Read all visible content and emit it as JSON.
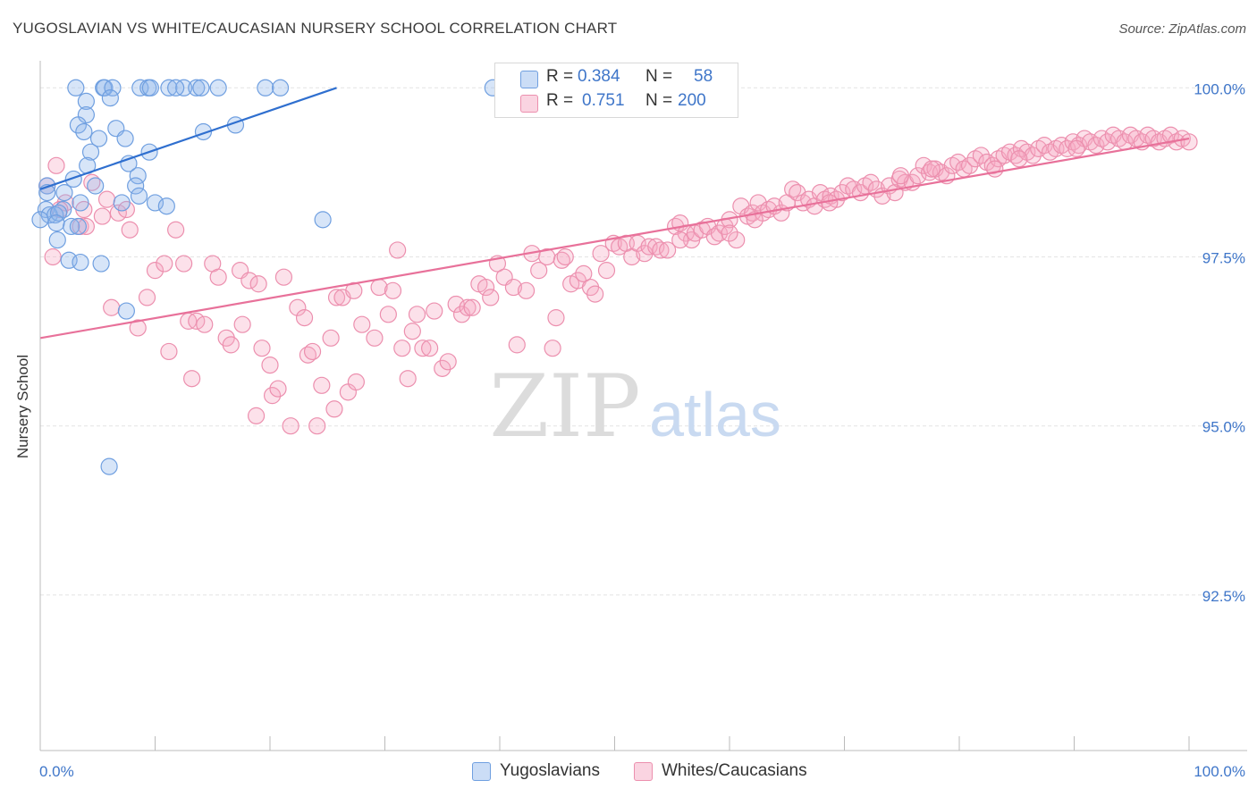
{
  "title": "YUGOSLAVIAN VS WHITE/CAUCASIAN NURSERY SCHOOL CORRELATION CHART",
  "source": "Source: ZipAtlas.com",
  "watermark": {
    "zip": "ZIP",
    "atlas": "atlas"
  },
  "colors": {
    "blue": "#6f9fe0",
    "blue_fill": "rgba(140,180,235,0.35)",
    "blue_line": "#2f6fcf",
    "pink": "#ec8fae",
    "pink_fill": "rgba(245,170,195,0.35)",
    "pink_line": "#e8719a",
    "axis_text": "#3f76c9",
    "grid": "#e4e4e4"
  },
  "stats": [
    {
      "series": "Yugoslavians",
      "r_label": "R =",
      "r": "0.384",
      "n_label": "N =",
      "n": "58"
    },
    {
      "series": "Whites/Caucasians",
      "r_label": "R =",
      "r": "0.751",
      "n_label": "N =",
      "n": "200"
    }
  ],
  "legend": [
    "Yugoslavians",
    "Whites/Caucasians"
  ],
  "chart_data": {
    "type": "scatter",
    "title": "YUGOSLAVIAN VS WHITE/CAUCASIAN NURSERY SCHOOL CORRELATION CHART",
    "ylabel": "Nursery School",
    "xlim": [
      0,
      100
    ],
    "ylim": [
      90.2,
      100.4
    ],
    "x_tick_labels": [
      "0.0%",
      "100.0%"
    ],
    "y_ticks": [
      100.0,
      97.5,
      95.0,
      92.5
    ],
    "y_tick_labels": [
      "100.0%",
      "97.5%",
      "95.0%",
      "92.5%"
    ],
    "grid": true,
    "legend_position": "bottom-center",
    "series": [
      {
        "name": "Yugoslavians",
        "trend": {
          "x": [
            0,
            25.8
          ],
          "y": [
            98.5,
            100.0
          ]
        },
        "points": [
          [
            3.1,
            100.0
          ],
          [
            5.5,
            100.0
          ],
          [
            5.6,
            100.0
          ],
          [
            6.3,
            100.0
          ],
          [
            8.7,
            100.0
          ],
          [
            9.4,
            100.0
          ],
          [
            9.6,
            100.0
          ],
          [
            11.2,
            100.0
          ],
          [
            12.5,
            100.0
          ],
          [
            13.6,
            100.0
          ],
          [
            14.0,
            100.0
          ],
          [
            15.5,
            100.0
          ],
          [
            19.6,
            100.0
          ],
          [
            20.9,
            100.0
          ],
          [
            39.4,
            100.0
          ],
          [
            6.1,
            99.85
          ],
          [
            4.0,
            99.8
          ],
          [
            4.0,
            99.6
          ],
          [
            3.3,
            99.45
          ],
          [
            6.6,
            99.4
          ],
          [
            3.8,
            99.35
          ],
          [
            5.1,
            99.25
          ],
          [
            7.4,
            99.25
          ],
          [
            9.5,
            99.05
          ],
          [
            14.2,
            99.35
          ],
          [
            17.0,
            99.45
          ],
          [
            4.4,
            99.05
          ],
          [
            7.7,
            98.88
          ],
          [
            4.1,
            98.85
          ],
          [
            8.5,
            98.7
          ],
          [
            2.9,
            98.65
          ],
          [
            0.6,
            98.55
          ],
          [
            4.8,
            98.55
          ],
          [
            8.3,
            98.55
          ],
          [
            0.6,
            98.45
          ],
          [
            2.1,
            98.45
          ],
          [
            3.5,
            98.3
          ],
          [
            7.1,
            98.3
          ],
          [
            10.0,
            98.3
          ],
          [
            8.6,
            98.4
          ],
          [
            11.0,
            98.25
          ],
          [
            0.5,
            98.2
          ],
          [
            2.0,
            98.2
          ],
          [
            0.8,
            98.12
          ],
          [
            1.3,
            98.12
          ],
          [
            1.6,
            98.15
          ],
          [
            24.6,
            98.05
          ],
          [
            1.4,
            98.0
          ],
          [
            2.7,
            97.95
          ],
          [
            3.3,
            97.95
          ],
          [
            1.5,
            97.75
          ],
          [
            2.5,
            97.45
          ],
          [
            3.5,
            97.42
          ],
          [
            5.3,
            97.4
          ],
          [
            7.5,
            96.7
          ],
          [
            6.0,
            94.4
          ],
          [
            0.0,
            98.05
          ],
          [
            11.8,
            100.0
          ]
        ]
      },
      {
        "name": "Whites/Caucasians",
        "trend": {
          "x": [
            1.5,
            100
          ],
          "y": [
            96.3,
            99.25
          ]
        },
        "points": [
          [
            0.6,
            98.55
          ],
          [
            1.4,
            98.85
          ],
          [
            2.2,
            98.3
          ],
          [
            1.7,
            98.2
          ],
          [
            3.5,
            97.95
          ],
          [
            4.0,
            97.95
          ],
          [
            1.1,
            97.5
          ],
          [
            3.8,
            98.2
          ],
          [
            5.4,
            98.1
          ],
          [
            4.5,
            98.6
          ],
          [
            5.8,
            98.35
          ],
          [
            6.8,
            98.15
          ],
          [
            7.5,
            98.2
          ],
          [
            7.8,
            97.9
          ],
          [
            6.2,
            96.75
          ],
          [
            8.5,
            96.45
          ],
          [
            9.3,
            96.9
          ],
          [
            10.0,
            97.3
          ],
          [
            10.8,
            97.4
          ],
          [
            11.8,
            97.9
          ],
          [
            12.5,
            97.4
          ],
          [
            11.2,
            96.1
          ],
          [
            12.9,
            96.55
          ],
          [
            13.6,
            96.55
          ],
          [
            13.2,
            95.7
          ],
          [
            14.3,
            96.5
          ],
          [
            15.0,
            97.4
          ],
          [
            15.5,
            97.2
          ],
          [
            16.2,
            96.3
          ],
          [
            16.6,
            96.2
          ],
          [
            17.4,
            97.3
          ],
          [
            17.6,
            96.5
          ],
          [
            18.2,
            97.15
          ],
          [
            19.0,
            97.1
          ],
          [
            19.3,
            96.15
          ],
          [
            18.8,
            95.15
          ],
          [
            20.0,
            95.9
          ],
          [
            20.2,
            95.45
          ],
          [
            20.7,
            95.55
          ],
          [
            21.2,
            97.2
          ],
          [
            21.8,
            95.0
          ],
          [
            22.4,
            96.75
          ],
          [
            23.0,
            96.6
          ],
          [
            23.3,
            96.05
          ],
          [
            23.7,
            96.1
          ],
          [
            24.1,
            95.0
          ],
          [
            24.5,
            95.6
          ],
          [
            25.3,
            96.3
          ],
          [
            25.8,
            96.9
          ],
          [
            26.3,
            96.9
          ],
          [
            25.6,
            95.25
          ],
          [
            26.8,
            95.5
          ],
          [
            27.5,
            95.65
          ],
          [
            27.3,
            97.0
          ],
          [
            28.0,
            96.5
          ],
          [
            29.1,
            96.3
          ],
          [
            29.5,
            97.05
          ],
          [
            30.3,
            96.65
          ],
          [
            30.7,
            97.0
          ],
          [
            31.1,
            97.6
          ],
          [
            31.5,
            96.15
          ],
          [
            32.0,
            95.7
          ],
          [
            32.4,
            96.4
          ],
          [
            32.8,
            96.65
          ],
          [
            33.3,
            96.15
          ],
          [
            33.9,
            96.15
          ],
          [
            34.3,
            96.7
          ],
          [
            35.0,
            95.85
          ],
          [
            35.5,
            95.95
          ],
          [
            36.2,
            96.8
          ],
          [
            36.7,
            96.65
          ],
          [
            37.2,
            96.75
          ],
          [
            37.6,
            96.75
          ],
          [
            38.2,
            97.1
          ],
          [
            38.8,
            97.05
          ],
          [
            39.2,
            96.9
          ],
          [
            39.8,
            97.4
          ],
          [
            40.4,
            97.2
          ],
          [
            41.2,
            97.05
          ],
          [
            41.5,
            96.2
          ],
          [
            42.3,
            97.0
          ],
          [
            42.8,
            97.55
          ],
          [
            43.4,
            97.3
          ],
          [
            44.1,
            97.5
          ],
          [
            44.6,
            96.15
          ],
          [
            44.9,
            96.6
          ],
          [
            45.4,
            97.45
          ],
          [
            45.7,
            97.5
          ],
          [
            46.2,
            97.1
          ],
          [
            46.8,
            97.15
          ],
          [
            47.3,
            97.25
          ],
          [
            47.9,
            97.05
          ],
          [
            48.3,
            96.95
          ],
          [
            48.8,
            97.55
          ],
          [
            49.3,
            97.3
          ],
          [
            49.9,
            97.7
          ],
          [
            50.4,
            97.65
          ],
          [
            51.0,
            97.7
          ],
          [
            51.5,
            97.5
          ],
          [
            52.0,
            97.7
          ],
          [
            52.6,
            97.55
          ],
          [
            53.0,
            97.65
          ],
          [
            53.6,
            97.65
          ],
          [
            54.0,
            97.6
          ],
          [
            54.6,
            97.6
          ],
          [
            55.3,
            97.95
          ],
          [
            55.7,
            98.0
          ],
          [
            56.2,
            97.85
          ],
          [
            56.7,
            97.75
          ],
          [
            57.0,
            97.85
          ],
          [
            57.6,
            97.9
          ],
          [
            58.1,
            97.95
          ],
          [
            58.7,
            97.8
          ],
          [
            59.1,
            97.85
          ],
          [
            59.6,
            97.95
          ],
          [
            60.0,
            98.05
          ],
          [
            60.6,
            97.75
          ],
          [
            61.0,
            98.25
          ],
          [
            61.6,
            98.1
          ],
          [
            62.0,
            98.15
          ],
          [
            62.5,
            98.3
          ],
          [
            62.9,
            98.15
          ],
          [
            63.4,
            98.2
          ],
          [
            63.9,
            98.25
          ],
          [
            64.5,
            98.15
          ],
          [
            65.0,
            98.3
          ],
          [
            65.5,
            98.5
          ],
          [
            65.9,
            98.45
          ],
          [
            66.4,
            98.3
          ],
          [
            66.9,
            98.35
          ],
          [
            67.4,
            98.25
          ],
          [
            67.9,
            98.45
          ],
          [
            68.3,
            98.35
          ],
          [
            68.8,
            98.4
          ],
          [
            69.3,
            98.35
          ],
          [
            69.8,
            98.45
          ],
          [
            70.3,
            98.55
          ],
          [
            70.8,
            98.5
          ],
          [
            71.4,
            98.45
          ],
          [
            71.8,
            98.55
          ],
          [
            72.3,
            98.6
          ],
          [
            72.8,
            98.5
          ],
          [
            73.3,
            98.4
          ],
          [
            73.9,
            98.55
          ],
          [
            74.4,
            98.45
          ],
          [
            74.8,
            98.65
          ],
          [
            75.3,
            98.6
          ],
          [
            75.9,
            98.6
          ],
          [
            76.4,
            98.7
          ],
          [
            76.9,
            98.85
          ],
          [
            77.4,
            98.75
          ],
          [
            77.9,
            98.8
          ],
          [
            78.4,
            98.75
          ],
          [
            78.9,
            98.7
          ],
          [
            79.4,
            98.85
          ],
          [
            79.9,
            98.9
          ],
          [
            80.4,
            98.8
          ],
          [
            80.9,
            98.85
          ],
          [
            81.4,
            98.95
          ],
          [
            81.9,
            99.0
          ],
          [
            82.4,
            98.9
          ],
          [
            82.9,
            98.85
          ],
          [
            83.4,
            98.95
          ],
          [
            83.9,
            99.0
          ],
          [
            84.4,
            99.05
          ],
          [
            84.9,
            99.0
          ],
          [
            85.4,
            99.1
          ],
          [
            85.9,
            99.05
          ],
          [
            86.4,
            99.0
          ],
          [
            86.9,
            99.1
          ],
          [
            87.4,
            99.15
          ],
          [
            87.9,
            99.05
          ],
          [
            88.4,
            99.1
          ],
          [
            88.9,
            99.15
          ],
          [
            89.4,
            99.1
          ],
          [
            89.9,
            99.2
          ],
          [
            90.4,
            99.15
          ],
          [
            90.9,
            99.25
          ],
          [
            91.4,
            99.2
          ],
          [
            91.9,
            99.15
          ],
          [
            92.4,
            99.25
          ],
          [
            92.9,
            99.2
          ],
          [
            93.4,
            99.3
          ],
          [
            93.9,
            99.25
          ],
          [
            94.4,
            99.2
          ],
          [
            94.9,
            99.3
          ],
          [
            95.4,
            99.25
          ],
          [
            95.9,
            99.2
          ],
          [
            96.4,
            99.3
          ],
          [
            96.9,
            99.25
          ],
          [
            97.4,
            99.2
          ],
          [
            97.9,
            99.25
          ],
          [
            98.4,
            99.3
          ],
          [
            98.9,
            99.2
          ],
          [
            99.4,
            99.25
          ],
          [
            100.0,
            99.2
          ],
          [
            85.2,
            98.95
          ],
          [
            74.9,
            98.7
          ],
          [
            62.2,
            98.05
          ],
          [
            55.7,
            97.75
          ],
          [
            60.0,
            97.85
          ],
          [
            68.7,
            98.3
          ],
          [
            77.6,
            98.8
          ],
          [
            83.1,
            98.8
          ],
          [
            90.2,
            99.1
          ]
        ]
      }
    ]
  }
}
